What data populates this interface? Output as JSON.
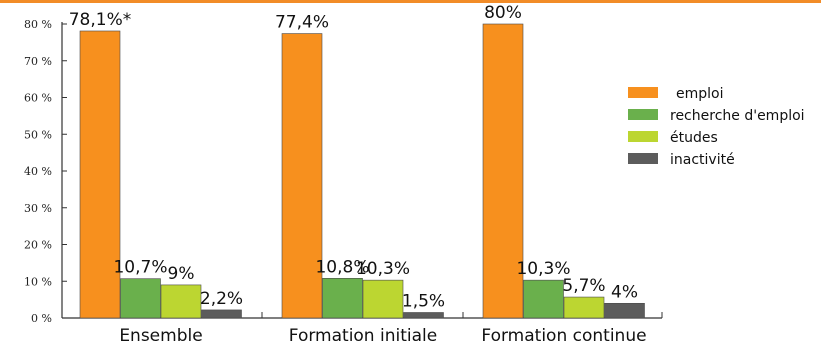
{
  "chart_data": {
    "type": "bar",
    "categories": [
      "Ensemble",
      "Formation initiale",
      "Formation continue"
    ],
    "series": [
      {
        "name": "emploi",
        "color": "#f7901e",
        "values": [
          78.1,
          77.4,
          80
        ]
      },
      {
        "name": "recherche d'emploi",
        "color": "#6ab04c",
        "values": [
          10.7,
          10.8,
          10.3
        ]
      },
      {
        "name": "études",
        "color": "#bcd631",
        "values": [
          9,
          10.3,
          5.7
        ]
      },
      {
        "name": "inactivité",
        "color": "#5c5c5c",
        "values": [
          2.2,
          1.5,
          4
        ]
      }
    ],
    "data_labels": [
      [
        "78,1%*",
        "10,7%",
        "9%",
        "2,2%"
      ],
      [
        "77,4%",
        "10,8%",
        "10,3%",
        "1,5%"
      ],
      [
        "80%",
        "10,3%",
        "5,7%",
        "4%"
      ]
    ],
    "yticks": [
      "0 %",
      "10 %",
      "20 %",
      "30 %",
      "40 %",
      "50 %",
      "60 %",
      "70 %",
      "80 %"
    ],
    "ylim": [
      0,
      80
    ],
    "grid": false,
    "legend_position": "right",
    "accent_line_color": "#f28c28"
  }
}
